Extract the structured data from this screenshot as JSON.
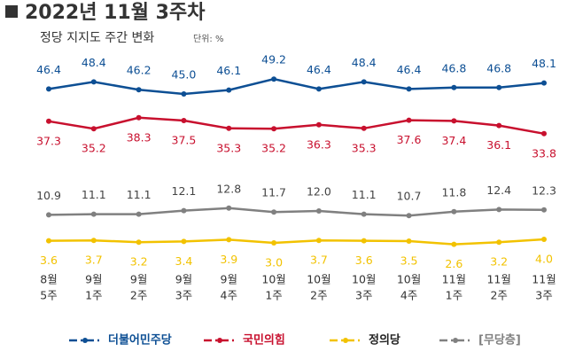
{
  "chart_data": {
    "type": "line",
    "title": "2022년 11월 3주차",
    "subtitle": "정당 지지도 주간 변화",
    "unit": "단위: %",
    "categories": [
      [
        "8월",
        "5주"
      ],
      [
        "9월",
        "1주"
      ],
      [
        "9월",
        "2주"
      ],
      [
        "9월",
        "3주"
      ],
      [
        "9월",
        "4주"
      ],
      [
        "10월",
        "1주"
      ],
      [
        "10월",
        "2주"
      ],
      [
        "10월",
        "3주"
      ],
      [
        "10월",
        "4주"
      ],
      [
        "11월",
        "1주"
      ],
      [
        "11월",
        "2주"
      ],
      [
        "11월",
        "3주"
      ]
    ],
    "ylim": [
      0,
      55
    ],
    "series": [
      {
        "name": "더불어민주당",
        "color": "#0d4f94",
        "label_position": "above",
        "values": [
          46.4,
          48.4,
          46.2,
          45.0,
          46.1,
          49.2,
          46.4,
          48.4,
          46.4,
          46.8,
          46.8,
          48.1
        ],
        "value_labels": [
          "46.4",
          "48.4",
          "46.2",
          "45.0",
          "46.1",
          "49.2",
          "46.4",
          "48.4",
          "46.4",
          "46.8",
          "46.8",
          "48.1"
        ]
      },
      {
        "name": "국민의힘",
        "color": "#c8102e",
        "label_position": "below",
        "values": [
          37.3,
          35.2,
          38.3,
          37.5,
          35.3,
          35.2,
          36.3,
          35.3,
          37.6,
          37.4,
          36.1,
          33.8
        ],
        "value_labels": [
          "37.3",
          "35.2",
          "38.3",
          "37.5",
          "35.3",
          "35.2",
          "36.3",
          "35.3",
          "37.6",
          "37.4",
          "36.1",
          "33.8"
        ]
      },
      {
        "name": "[무당층]",
        "color": "#808080",
        "label_position": "above",
        "values": [
          10.9,
          11.1,
          11.1,
          12.1,
          12.8,
          11.7,
          12.0,
          11.1,
          10.7,
          11.8,
          12.4,
          12.3
        ],
        "value_labels": [
          "10.9",
          "11.1",
          "11.1",
          "12.1",
          "12.8",
          "11.7",
          "12.0",
          "11.1",
          "10.7",
          "11.8",
          "12.4",
          "12.3"
        ]
      },
      {
        "name": "정의당",
        "color": "#f2c200",
        "label_position": "below",
        "values": [
          3.6,
          3.7,
          3.2,
          3.4,
          3.9,
          3.0,
          3.7,
          3.6,
          3.5,
          2.6,
          3.2,
          4.0
        ],
        "value_labels": [
          "3.6",
          "3.7",
          "3.2",
          "3.4",
          "3.9",
          "3.0",
          "3.7",
          "3.6",
          "3.5",
          "2.6",
          "3.2",
          "4.0"
        ]
      }
    ],
    "legend_order": [
      0,
      1,
      3,
      2
    ]
  }
}
